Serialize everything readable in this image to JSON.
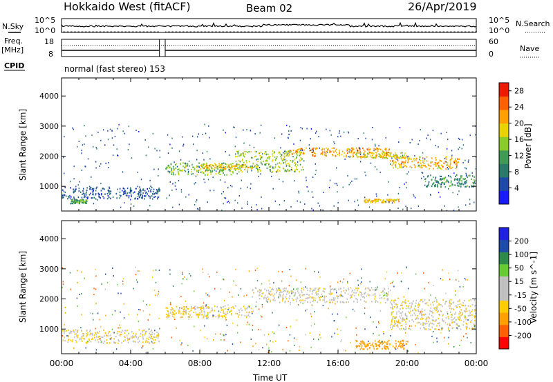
{
  "header": {
    "station": "Hokkaido West (fitACF)",
    "beam": "Beam 02",
    "date": "26/Apr/2019"
  },
  "strip_panels": {
    "nsky_label": "N.Sky",
    "nsky_top_tick": "10^5",
    "nsky_bottom_tick": "10^0",
    "nsearch_label": "N.Search",
    "nsearch_top_tick": "10^5",
    "nsearch_bottom_tick": "10^0",
    "freq_label": "Freq.",
    "freq_unit": "[MHz]",
    "freq_top_tick": "18",
    "freq_bottom_tick": "8",
    "nave_label": "Nave",
    "nave_top_tick": "60",
    "nave_bottom_tick": "0",
    "cpid_label": "CPID",
    "cpid_text": "normal (fast stereo)  153"
  },
  "colors": {
    "power_scale": [
      "#1a1aff",
      "#1f49a8",
      "#2a7a6a",
      "#3f9a55",
      "#8acb2a",
      "#e8d200",
      "#ffa000",
      "#ff6000",
      "#ee1a00"
    ],
    "velocity_scale": [
      "#ff0000",
      "#ff6000",
      "#ffa000",
      "#ffcc00",
      "#c0c0c0",
      "#c0c0c0",
      "#66cc33",
      "#2d8a4a",
      "#1e4aa8",
      "#2020e0"
    ]
  },
  "chart_data": [
    {
      "type": "heatmap",
      "title": "Power",
      "ylabel": "Slant Range [km]",
      "xlabel": "",
      "ylim": [
        180,
        4600
      ],
      "yticks": [
        "1000",
        "2000",
        "3000",
        "4000"
      ],
      "xlim": [
        "00:00",
        "24:00"
      ],
      "data_gap": [
        "05:40",
        "06:00"
      ],
      "colorbar": {
        "label": "Power [dB]",
        "ticks": [
          "4",
          "8",
          "12",
          "16",
          "20",
          "24",
          "28"
        ],
        "range": [
          0,
          30
        ]
      },
      "echo_bands": [
        {
          "time": [
            "00:00",
            "05:40"
          ],
          "range_km": [
            600,
            1000
          ],
          "power_dB": 6
        },
        {
          "time": [
            "00:30",
            "01:30"
          ],
          "range_km": [
            450,
            600
          ],
          "power_dB": 12
        },
        {
          "time": [
            "06:00",
            "10:00"
          ],
          "range_km": [
            1400,
            1800
          ],
          "power_dB": 14
        },
        {
          "time": [
            "08:00",
            "11:00"
          ],
          "range_km": [
            1600,
            1750
          ],
          "power_dB": 20
        },
        {
          "time": [
            "10:00",
            "14:00"
          ],
          "range_km": [
            1500,
            2200
          ],
          "power_dB": 16
        },
        {
          "time": [
            "13:00",
            "19:00"
          ],
          "range_km": [
            2000,
            2300
          ],
          "power_dB": 22
        },
        {
          "time": [
            "17:00",
            "20:00"
          ],
          "range_km": [
            1950,
            2150
          ],
          "power_dB": 18
        },
        {
          "time": [
            "19:00",
            "23:00"
          ],
          "range_km": [
            1600,
            2000
          ],
          "power_dB": 20
        },
        {
          "time": [
            "21:00",
            "24:00"
          ],
          "range_km": [
            1000,
            1400
          ],
          "power_dB": 10
        },
        {
          "time": [
            "17:30",
            "19:30"
          ],
          "range_km": [
            480,
            600
          ],
          "power_dB": 20
        }
      ]
    },
    {
      "type": "heatmap",
      "title": "Velocity",
      "ylabel": "Slant Range [km]",
      "xlabel": "Time UT",
      "ylim": [
        180,
        4600
      ],
      "yticks": [
        "1000",
        "2000",
        "3000",
        "4000"
      ],
      "xlim": [
        "00:00",
        "24:00"
      ],
      "xticks": [
        "00:00",
        "04:00",
        "08:00",
        "12:00",
        "16:00",
        "20:00",
        "00:00"
      ],
      "data_gap": [
        "05:40",
        "06:00"
      ],
      "colorbar": {
        "label": "Velocity [m s^-1]",
        "ticks": [
          "200",
          "100",
          "50",
          "15",
          "-15",
          "-50",
          "-100",
          "-200"
        ],
        "range": [
          -250,
          250
        ]
      },
      "echo_bands": [
        {
          "time": [
            "00:00",
            "05:40"
          ],
          "range_km": [
            550,
            1000
          ],
          "velocity": -10
        },
        {
          "time": [
            "06:00",
            "11:00"
          ],
          "range_km": [
            1400,
            1800
          ],
          "velocity": -20
        },
        {
          "time": [
            "11:00",
            "19:00"
          ],
          "range_km": [
            1900,
            2400
          ],
          "velocity": -5
        },
        {
          "time": [
            "19:00",
            "24:00"
          ],
          "range_km": [
            1000,
            2000
          ],
          "velocity": -10
        },
        {
          "time": [
            "17:00",
            "20:00"
          ],
          "range_km": [
            350,
            650
          ],
          "velocity": -70
        }
      ]
    }
  ]
}
